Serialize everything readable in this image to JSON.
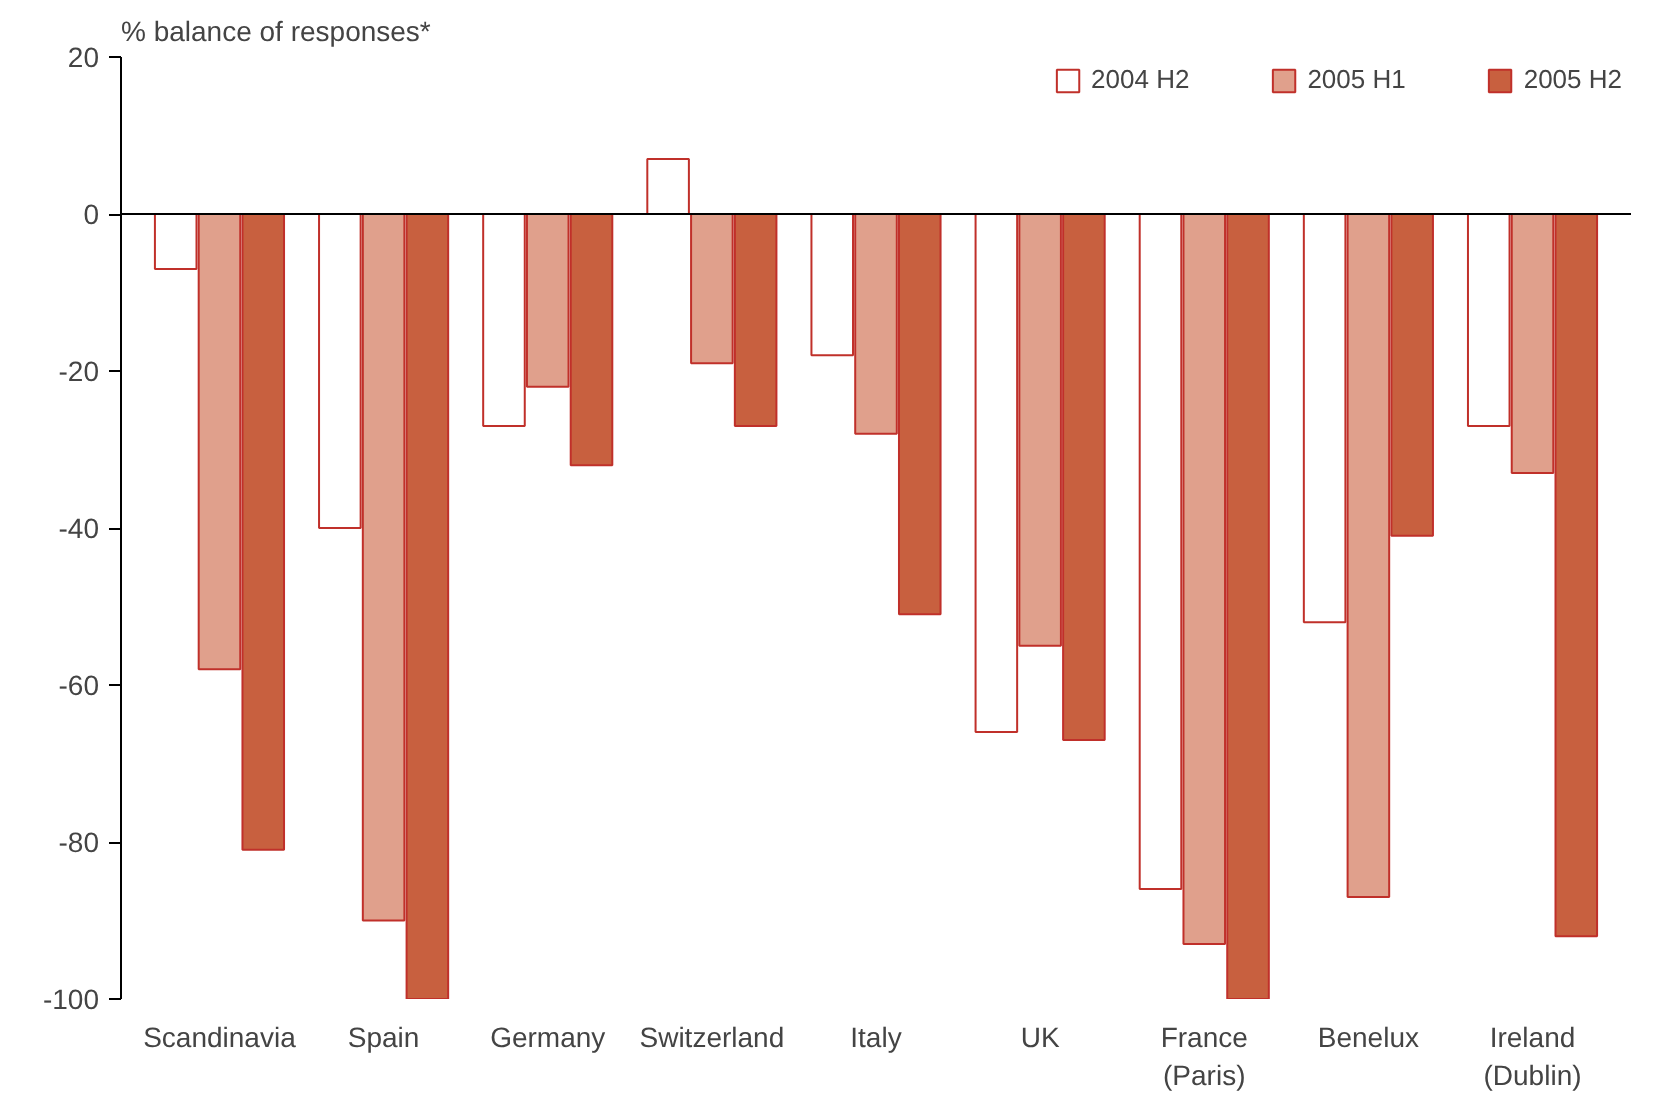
{
  "chart_data": {
    "type": "bar",
    "ylabel": "% balance of responses*",
    "categories": [
      "Scandinavia",
      "Spain",
      "Germany",
      "Switzerland",
      "Italy",
      "UK",
      "France\n(Paris)",
      "Benelux",
      "Ireland\n(Dublin)"
    ],
    "series": [
      {
        "name": "2004 H2",
        "color": "#ffffff",
        "values": [
          -7,
          -40,
          -27,
          7,
          -18,
          -66,
          -86,
          -52,
          -27
        ]
      },
      {
        "name": "2005 H1",
        "color": "#e0a08c",
        "values": [
          -58,
          -90,
          -22,
          -19,
          -28,
          -55,
          -93,
          -87,
          -33
        ]
      },
      {
        "name": "2005 H2",
        "color": "#c8603f",
        "values": [
          -81,
          -100,
          -32,
          -27,
          -51,
          -67,
          -100,
          -41,
          -92
        ]
      }
    ],
    "ylim": [
      -100,
      20
    ],
    "yticks": [
      -100,
      -80,
      -60,
      -40,
      -20,
      0,
      20
    ],
    "ref_lines": [
      {
        "axis": "y",
        "value": 0
      }
    ],
    "grid": false,
    "legend": "top right"
  }
}
